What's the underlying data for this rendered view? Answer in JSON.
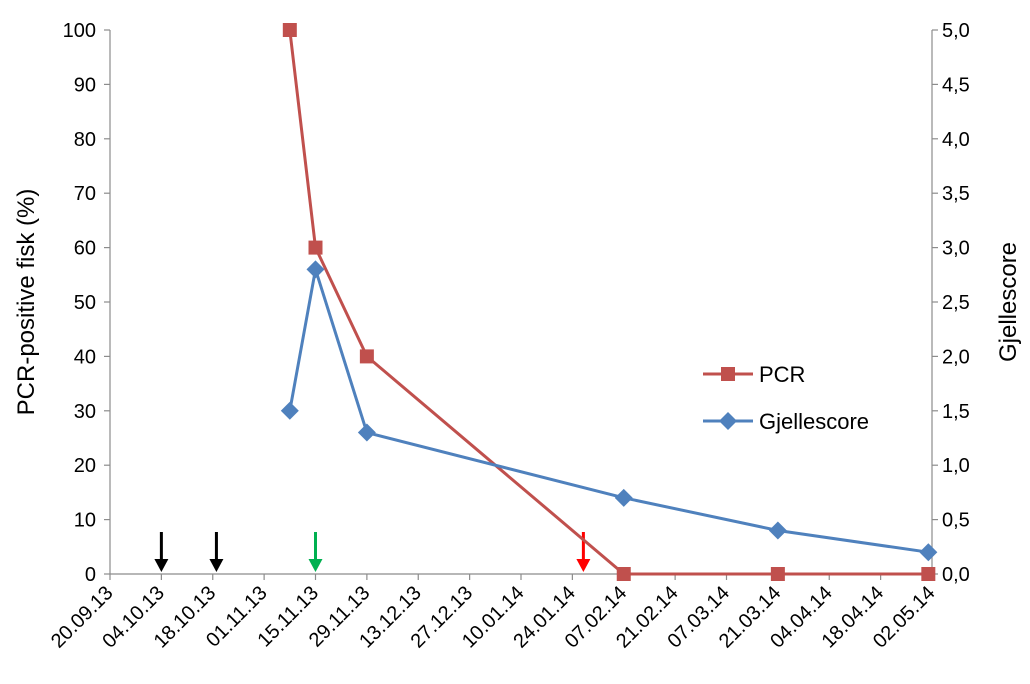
{
  "chart_data": {
    "type": "line",
    "title": "",
    "ylabel": "PCR-positive fisk (%)",
    "y2label": "Gjellescore",
    "ylim": [
      0,
      100
    ],
    "y2lim": [
      0,
      5
    ],
    "yticks": [
      "0",
      "10",
      "20",
      "30",
      "40",
      "50",
      "60",
      "70",
      "80",
      "90",
      "100"
    ],
    "y2ticks": [
      "0,0",
      "0,5",
      "1,0",
      "1,5",
      "2,0",
      "2,5",
      "3,0",
      "3,5",
      "4,0",
      "4,5",
      "5,0"
    ],
    "xticks": [
      "20.09.13",
      "04.10.13",
      "18.10.13",
      "01.11.13",
      "15.11.13",
      "29.11.13",
      "13.12.13",
      "27.12.13",
      "10.01.14",
      "24.01.14",
      "07.02.14",
      "21.02.14",
      "07.03.14",
      "21.03.14",
      "04.04.14",
      "18.04.14",
      "02.05.14"
    ],
    "legend_position": "right",
    "grid": false,
    "series": [
      {
        "name": "PCR",
        "axis": "left",
        "color": "#C0504D",
        "marker": "square",
        "points": [
          {
            "x": "08.11.13",
            "y": 100
          },
          {
            "x": "15.11.13",
            "y": 60
          },
          {
            "x": "29.11.13",
            "y": 40
          },
          {
            "x": "07.02.14",
            "y": 0
          },
          {
            "x": "21.03.14",
            "y": 0
          },
          {
            "x": "01.05.14",
            "y": 0
          }
        ]
      },
      {
        "name": "Gjellescore",
        "axis": "right",
        "color": "#4F81BD",
        "marker": "diamond",
        "points": [
          {
            "x": "08.11.13",
            "y": 1.5
          },
          {
            "x": "15.11.13",
            "y": 2.8
          },
          {
            "x": "29.11.13",
            "y": 1.3
          },
          {
            "x": "07.02.14",
            "y": 0.7
          },
          {
            "x": "21.03.14",
            "y": 0.4
          },
          {
            "x": "01.05.14",
            "y": 0.2
          }
        ]
      }
    ],
    "annotations": [
      {
        "type": "arrow",
        "x": "04.10.13",
        "color": "#000000"
      },
      {
        "type": "arrow",
        "x": "19.10.13",
        "color": "#000000"
      },
      {
        "type": "arrow",
        "x": "15.11.13",
        "color": "#00B050"
      },
      {
        "type": "arrow",
        "x": "27.01.14",
        "color": "#FF0000"
      }
    ]
  }
}
